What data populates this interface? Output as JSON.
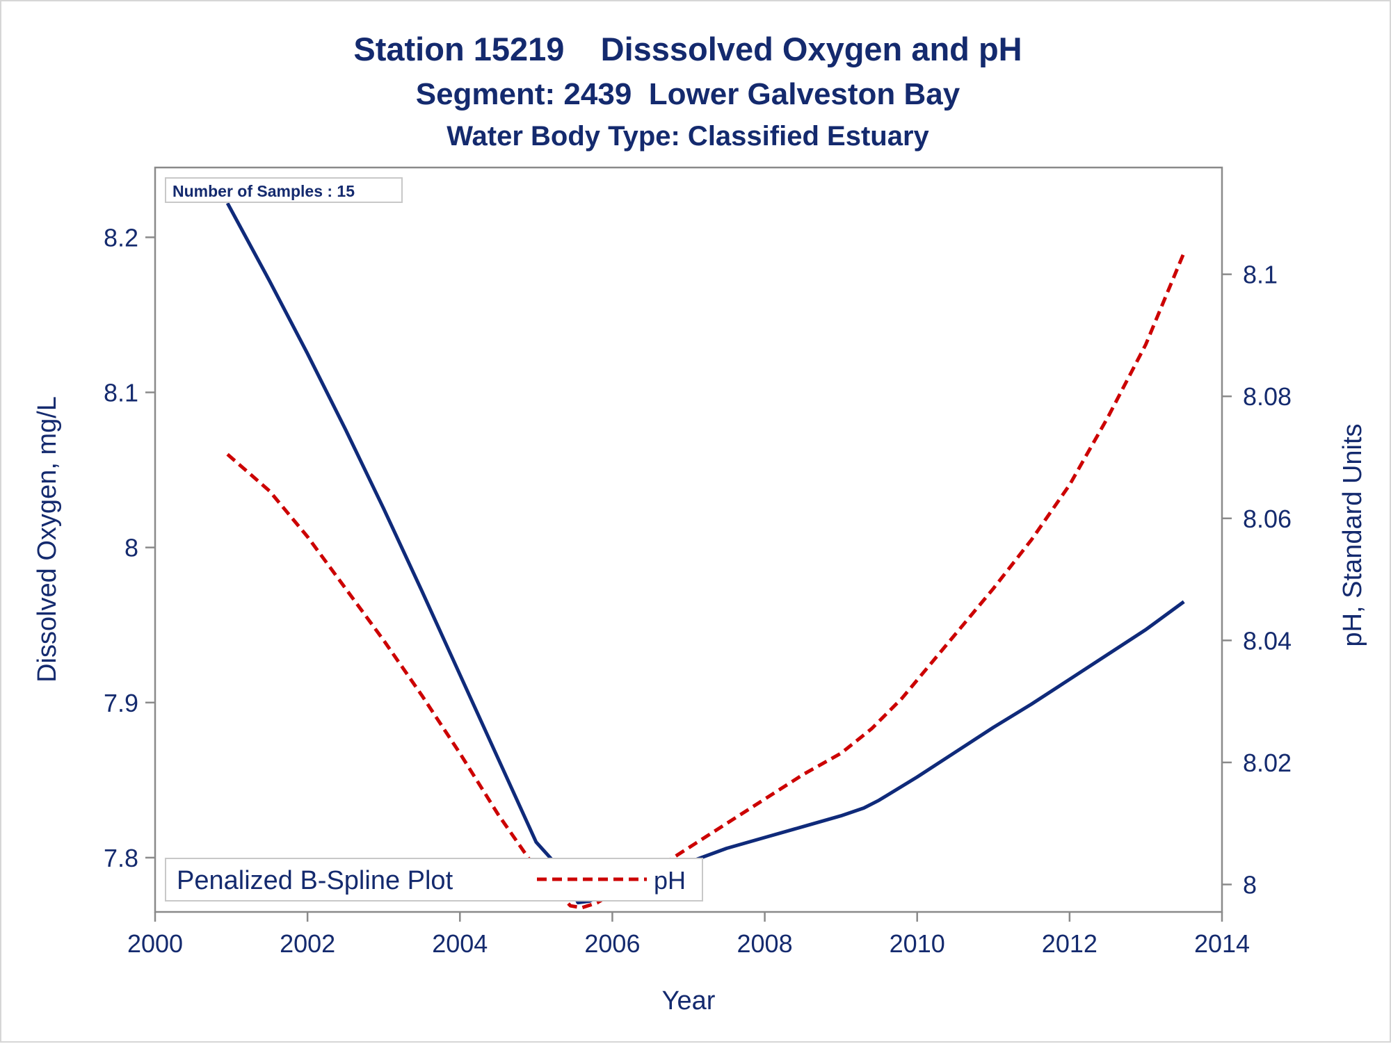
{
  "chart_data": {
    "type": "line",
    "title": "Station 15219    Disssolved Oxygen and pH",
    "subtitle": "Segment: 2439  Lower Galveston Bay",
    "subtitle2": "Water Body Type: Classified Estuary",
    "xlabel": "Year",
    "ylabel": "Dissolved Oxygen, mg/L",
    "y2label": "pH, Standard Units",
    "xlim": [
      2000,
      2014
    ],
    "ylim": [
      7.765,
      8.245
    ],
    "y2lim": [
      7.9955,
      8.1175
    ],
    "x_ticks": [
      "2000",
      "2002",
      "2004",
      "2006",
      "2008",
      "2010",
      "2012",
      "2014"
    ],
    "y_ticks": [
      "7.8",
      "7.9",
      "8",
      "8.1",
      "8.2"
    ],
    "y2_ticks": [
      "8",
      "8.02",
      "8.04",
      "8.06",
      "8.08",
      "8.1"
    ],
    "annotation": "Number of Samples : 15",
    "legend_title": "Penalized B-Spline Plot",
    "legend_position": "bottom-left-inside",
    "grid": false,
    "series": [
      {
        "name": "",
        "axis": "left",
        "color": "#0f2a7a",
        "style": "solid",
        "points": [
          [
            2000.95,
            8.222
          ],
          [
            2001.5,
            8.172
          ],
          [
            2002.0,
            8.125
          ],
          [
            2002.5,
            8.076
          ],
          [
            2003.0,
            8.025
          ],
          [
            2003.5,
            7.972
          ],
          [
            2004.0,
            7.918
          ],
          [
            2004.5,
            7.864
          ],
          [
            2005.0,
            7.81
          ],
          [
            2005.35,
            7.791
          ],
          [
            2005.55,
            7.771
          ],
          [
            2005.7,
            7.772
          ],
          [
            2006.0,
            7.779
          ],
          [
            2006.5,
            7.788
          ],
          [
            2007.0,
            7.797
          ],
          [
            2007.5,
            7.806
          ],
          [
            2008.0,
            7.813
          ],
          [
            2008.5,
            7.82
          ],
          [
            2009.0,
            7.827
          ],
          [
            2009.3,
            7.832
          ],
          [
            2009.5,
            7.837
          ],
          [
            2010.0,
            7.852
          ],
          [
            2010.5,
            7.868
          ],
          [
            2011.0,
            7.884
          ],
          [
            2011.5,
            7.899
          ],
          [
            2012.0,
            7.915
          ],
          [
            2012.5,
            7.931
          ],
          [
            2013.0,
            7.947
          ],
          [
            2013.5,
            7.965
          ]
        ]
      },
      {
        "name": "pH",
        "axis": "right",
        "color": "#cc0000",
        "style": "dashed",
        "points": [
          [
            2000.95,
            8.0705
          ],
          [
            2001.5,
            8.0645
          ],
          [
            2002.0,
            8.057
          ],
          [
            2002.5,
            8.0485
          ],
          [
            2003.0,
            8.04
          ],
          [
            2003.5,
            8.031
          ],
          [
            2004.0,
            8.0215
          ],
          [
            2004.5,
            8.0115
          ],
          [
            2005.0,
            8.0025
          ],
          [
            2005.45,
            7.9965
          ],
          [
            2005.6,
            7.9962
          ],
          [
            2005.8,
            7.997
          ],
          [
            2006.0,
            7.9985
          ],
          [
            2006.5,
            8.002
          ],
          [
            2007.0,
            8.006
          ],
          [
            2007.5,
            8.01
          ],
          [
            2008.0,
            8.014
          ],
          [
            2008.5,
            8.018
          ],
          [
            2009.0,
            8.0215
          ],
          [
            2009.4,
            8.0255
          ],
          [
            2009.8,
            8.0305
          ],
          [
            2010.5,
            8.041
          ],
          [
            2011.0,
            8.0485
          ],
          [
            2011.5,
            8.0565
          ],
          [
            2012.0,
            8.0655
          ],
          [
            2012.5,
            8.0765
          ],
          [
            2013.0,
            8.0885
          ],
          [
            2013.5,
            8.1035
          ]
        ]
      }
    ]
  }
}
